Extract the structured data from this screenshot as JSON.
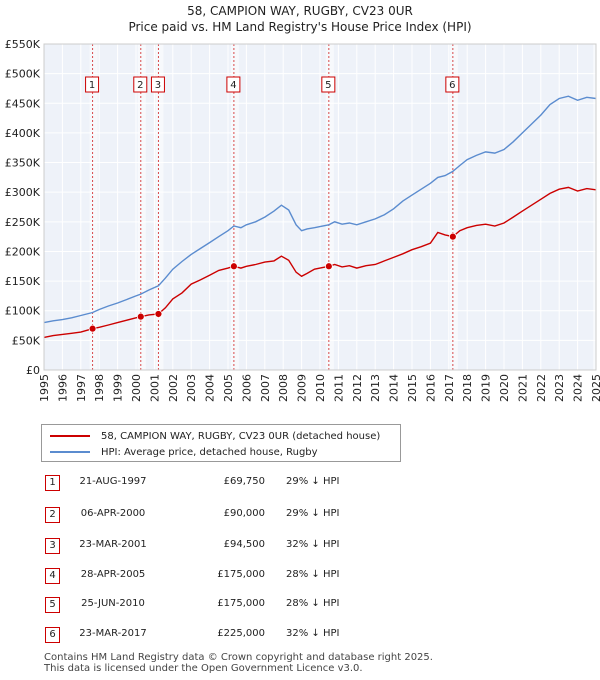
{
  "title_line1": "58, CAMPION WAY, RUGBY, CV23 0UR",
  "title_line2": "Price paid vs. HM Land Registry's House Price Index (HPI)",
  "colors": {
    "property": "#cc0000",
    "hpi": "#5b8ccf",
    "shade": "#e8eef8",
    "marker_border": "#cc0000"
  },
  "legend": {
    "property_label": "58, CAMPION WAY, RUGBY, CV23 0UR (detached house)",
    "hpi_label": "HPI: Average price, detached house, Rugby"
  },
  "transactions": [
    {
      "num": "1",
      "date": "21-AUG-1997",
      "price": "£69,750",
      "hpi": "29% ↓ HPI"
    },
    {
      "num": "2",
      "date": "06-APR-2000",
      "price": "£90,000",
      "hpi": "29% ↓ HPI"
    },
    {
      "num": "3",
      "date": "23-MAR-2001",
      "price": "£94,500",
      "hpi": "32% ↓ HPI"
    },
    {
      "num": "4",
      "date": "28-APR-2005",
      "price": "£175,000",
      "hpi": "28% ↓ HPI"
    },
    {
      "num": "5",
      "date": "25-JUN-2010",
      "price": "£175,000",
      "hpi": "28% ↓ HPI"
    },
    {
      "num": "6",
      "date": "23-MAR-2017",
      "price": "£225,000",
      "hpi": "32% ↓ HPI"
    }
  ],
  "footer": {
    "line1": "Contains HM Land Registry data © Crown copyright and database right 2025.",
    "line2": "This data is licensed under the Open Government Licence v3.0."
  },
  "chart_data": {
    "type": "line",
    "title": "58, CAMPION WAY, RUGBY, CV23 0UR — Price paid vs. HM Land Registry's House Price Index (HPI)",
    "xlabel": "",
    "ylabel": "",
    "xlim": [
      1995,
      2025
    ],
    "ylim": [
      0,
      550000
    ],
    "y_ticks": [
      0,
      50000,
      100000,
      150000,
      200000,
      250000,
      300000,
      350000,
      400000,
      450000,
      500000,
      550000
    ],
    "y_tick_labels": [
      "£0",
      "£50K",
      "£100K",
      "£150K",
      "£200K",
      "£250K",
      "£300K",
      "£350K",
      "£400K",
      "£450K",
      "£500K",
      "£550K"
    ],
    "x_ticks": [
      1995,
      1996,
      1997,
      1998,
      1999,
      2000,
      2001,
      2002,
      2003,
      2004,
      2005,
      2006,
      2007,
      2008,
      2009,
      2010,
      2011,
      2012,
      2013,
      2014,
      2015,
      2016,
      2017,
      2018,
      2019,
      2020,
      2021,
      2022,
      2023,
      2024,
      2025
    ],
    "x_tick_labels": [
      "1995",
      "1996",
      "1997",
      "1998",
      "1999",
      "2000",
      "2001",
      "2002",
      "2003",
      "2004",
      "2005",
      "2006",
      "2007",
      "2008",
      "2009",
      "2010",
      "2011",
      "2012",
      "2013",
      "2014",
      "2015",
      "2016",
      "2017",
      "2018",
      "2019",
      "2020",
      "2021",
      "2022",
      "2023",
      "2024",
      "2025"
    ],
    "grid": true,
    "legend_position": "below",
    "series": [
      {
        "name": "58, CAMPION WAY, RUGBY, CV23 0UR (detached house)",
        "color": "#cc0000",
        "x": [
          1995.0,
          1995.5,
          1996.0,
          1996.5,
          1997.0,
          1997.64,
          1998.0,
          1998.5,
          1999.0,
          1999.5,
          2000.0,
          2000.26,
          2000.7,
          2001.22,
          2001.6,
          2002.0,
          2002.5,
          2003.0,
          2003.5,
          2004.0,
          2004.5,
          2005.0,
          2005.32,
          2005.7,
          2006.0,
          2006.5,
          2007.0,
          2007.5,
          2007.9,
          2008.3,
          2008.7,
          2009.0,
          2009.3,
          2009.7,
          2010.0,
          2010.48,
          2010.8,
          2011.2,
          2011.6,
          2012.0,
          2012.5,
          2013.0,
          2013.5,
          2014.0,
          2014.5,
          2015.0,
          2015.5,
          2016.0,
          2016.4,
          2016.8,
          2017.22,
          2017.6,
          2018.0,
          2018.5,
          2019.0,
          2019.5,
          2020.0,
          2020.5,
          2021.0,
          2021.5,
          2022.0,
          2022.5,
          2023.0,
          2023.5,
          2024.0,
          2024.5,
          2025.0
        ],
        "y": [
          55000,
          58000,
          60000,
          62000,
          64000,
          69750,
          72000,
          76000,
          80000,
          84000,
          88000,
          90000,
          93000,
          94500,
          105000,
          120000,
          130000,
          145000,
          152000,
          160000,
          168000,
          172000,
          175000,
          172000,
          175000,
          178000,
          182000,
          184000,
          192000,
          185000,
          165000,
          158000,
          163000,
          170000,
          172000,
          175000,
          178000,
          174000,
          176000,
          172000,
          176000,
          178000,
          184000,
          190000,
          196000,
          203000,
          208000,
          214000,
          232000,
          228000,
          225000,
          235000,
          240000,
          244000,
          246000,
          243000,
          248000,
          258000,
          268000,
          278000,
          288000,
          298000,
          305000,
          308000,
          302000,
          306000,
          304000
        ]
      },
      {
        "name": "HPI: Average price, detached house, Rugby",
        "color": "#5b8ccf",
        "x": [
          1995.0,
          1995.5,
          1996.0,
          1996.5,
          1997.0,
          1997.64,
          1998.0,
          1998.5,
          1999.0,
          1999.5,
          2000.0,
          2000.26,
          2000.7,
          2001.22,
          2001.6,
          2002.0,
          2002.5,
          2003.0,
          2003.5,
          2004.0,
          2004.5,
          2005.0,
          2005.32,
          2005.7,
          2006.0,
          2006.5,
          2007.0,
          2007.5,
          2007.9,
          2008.3,
          2008.7,
          2009.0,
          2009.3,
          2009.7,
          2010.0,
          2010.48,
          2010.8,
          2011.2,
          2011.6,
          2012.0,
          2012.5,
          2013.0,
          2013.5,
          2014.0,
          2014.5,
          2015.0,
          2015.5,
          2016.0,
          2016.4,
          2016.8,
          2017.22,
          2017.6,
          2018.0,
          2018.5,
          2019.0,
          2019.5,
          2020.0,
          2020.5,
          2021.0,
          2021.5,
          2022.0,
          2022.5,
          2023.0,
          2023.5,
          2024.0,
          2024.5,
          2025.0
        ],
        "y": [
          80000,
          83000,
          85000,
          88000,
          92000,
          97000,
          102000,
          108000,
          113000,
          119000,
          125000,
          128000,
          135000,
          142000,
          155000,
          170000,
          183000,
          195000,
          205000,
          215000,
          225000,
          235000,
          243000,
          240000,
          245000,
          250000,
          258000,
          268000,
          278000,
          270000,
          245000,
          235000,
          238000,
          240000,
          242000,
          245000,
          250000,
          246000,
          248000,
          245000,
          250000,
          255000,
          262000,
          272000,
          285000,
          295000,
          305000,
          315000,
          325000,
          328000,
          335000,
          345000,
          355000,
          362000,
          368000,
          366000,
          372000,
          385000,
          400000,
          415000,
          430000,
          448000,
          458000,
          462000,
          455000,
          460000,
          458000
        ]
      }
    ],
    "sales": [
      {
        "num": "1",
        "x": 1997.64,
        "y": 69750
      },
      {
        "num": "2",
        "x": 2000.26,
        "y": 90000
      },
      {
        "num": "3",
        "x": 2001.22,
        "y": 94500
      },
      {
        "num": "4",
        "x": 2005.32,
        "y": 175000
      },
      {
        "num": "5",
        "x": 2010.48,
        "y": 175000
      },
      {
        "num": "6",
        "x": 2017.22,
        "y": 225000
      }
    ]
  }
}
